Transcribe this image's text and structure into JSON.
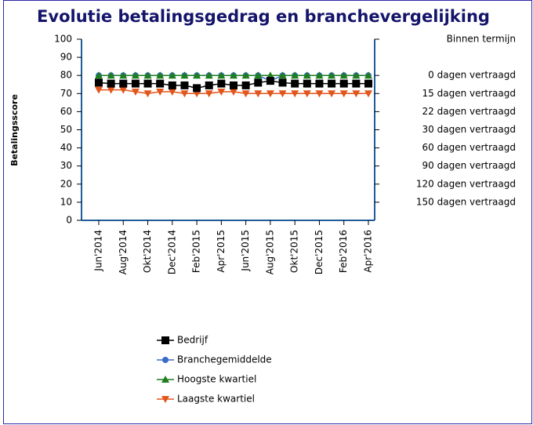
{
  "chart_data": {
    "type": "line",
    "title": "Evolutie betalingsgedrag en branchevergelijking",
    "y_label": "Betalingsscore",
    "categories": [
      "Jun'2014",
      null,
      "Aug'2014",
      null,
      "Okt'2014",
      null,
      "Dec'2014",
      null,
      "Feb'2015",
      null,
      "Apr'2015",
      null,
      "Jun'2015",
      null,
      "Aug'2015",
      null,
      "Okt'2015",
      null,
      "Dec'2015",
      null,
      "Feb'2016",
      null,
      "Apr'2016"
    ],
    "series": [
      {
        "name": "Bedrijf",
        "color": "#000000",
        "marker": "square",
        "values": [
          76,
          75.5,
          75.5,
          75.5,
          75.5,
          75.5,
          74.5,
          74.5,
          73,
          74.5,
          75.5,
          74.5,
          74.5,
          76,
          77,
          76,
          75.5,
          75.5,
          75.5,
          75.5,
          75.5,
          75.5,
          75.5
        ]
      },
      {
        "name": "Branchegemiddelde",
        "color": "#3b6bc9",
        "marker": "circle",
        "values": [
          80,
          80,
          80,
          80,
          80,
          80,
          80,
          80,
          80,
          80,
          80,
          80,
          80,
          80,
          77,
          80,
          80,
          80,
          80,
          80,
          80,
          80,
          80
        ]
      },
      {
        "name": "Hoogste kwartiel",
        "color": "#1e7d1e",
        "marker": "triangle-up",
        "values": [
          80,
          80,
          80,
          80,
          80,
          80,
          80,
          80,
          80,
          80,
          80,
          80,
          80,
          80,
          80,
          80,
          80,
          80,
          80,
          80,
          80,
          80,
          80
        ]
      },
      {
        "name": "Laagste kwartiel",
        "color": "#e2561c",
        "marker": "triangle-down",
        "values": [
          72,
          72,
          72,
          71,
          70,
          71,
          71,
          70,
          70,
          70,
          71,
          71,
          70,
          70,
          70,
          70,
          70,
          70,
          70,
          70,
          70,
          70,
          70
        ]
      }
    ],
    "ylim": [
      0,
      100
    ],
    "yticks": [
      0,
      10,
      20,
      30,
      40,
      50,
      60,
      70,
      80,
      90,
      100
    ],
    "y2lim": [
      0,
      100
    ],
    "y2ticks": [
      {
        "value": 100,
        "label": "Binnen termijn"
      },
      {
        "value": 80,
        "label": "0 dagen vertraagd"
      },
      {
        "value": 70,
        "label": "15 dagen vertraagd"
      },
      {
        "value": 60,
        "label": "22 dagen vertraagd"
      },
      {
        "value": 50,
        "label": "30 dagen vertraagd"
      },
      {
        "value": 40,
        "label": "60 dagen vertraagd"
      },
      {
        "value": 30,
        "label": "90 dagen vertraagd"
      },
      {
        "value": 20,
        "label": "120 dagen vertraagd"
      },
      {
        "value": 10,
        "label": "150 dagen vertraagd"
      }
    ],
    "legend": "bottom-left"
  }
}
